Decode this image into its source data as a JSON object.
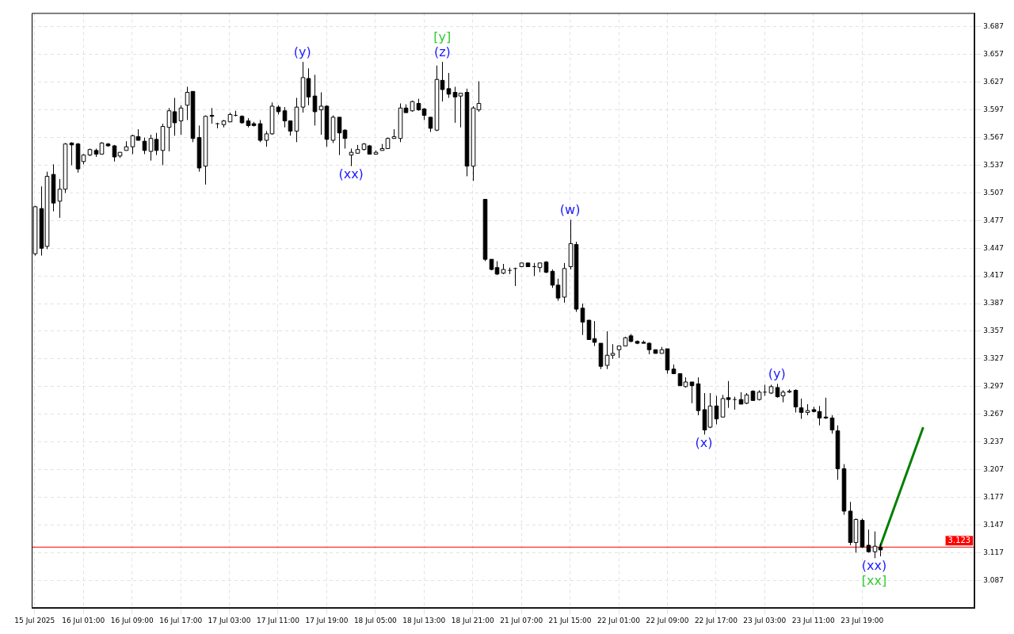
{
  "chart_data": {
    "type": "candlestick",
    "categories": [
      "15 Jul 2025",
      null,
      null,
      null,
      null,
      null,
      null,
      null,
      "16 Jul 01:00",
      null,
      null,
      null,
      null,
      null,
      null,
      null,
      "16 Jul 09:00",
      null,
      null,
      null,
      null,
      null,
      null,
      null,
      "16 Jul 17:00",
      null,
      null,
      null,
      null,
      null,
      null,
      null,
      "17 Jul 03:00",
      null,
      null,
      null,
      null,
      null,
      null,
      null,
      "17 Jul 11:00",
      null,
      null,
      null,
      null,
      null,
      null,
      null,
      "17 Jul 19:00",
      null,
      null,
      null,
      null,
      null,
      null,
      null,
      "18 Jul 05:00",
      null,
      null,
      null,
      null,
      null,
      null,
      null,
      "18 Jul 13:00",
      null,
      null,
      null,
      null,
      null,
      null,
      null,
      "18 Jul 21:00",
      null,
      null,
      null,
      null,
      null,
      null,
      null,
      "21 Jul 07:00",
      null,
      null,
      null,
      null,
      null,
      null,
      null,
      "21 Jul 15:00",
      null,
      null,
      null,
      null,
      null,
      null,
      null,
      "22 Jul 01:00",
      null,
      null,
      null,
      null,
      null,
      null,
      null,
      "22 Jul 09:00",
      null,
      null,
      null,
      null,
      null,
      null,
      null,
      "22 Jul 17:00",
      null,
      null,
      null,
      null,
      null,
      null,
      null,
      "23 Jul 03:00",
      null,
      null,
      null,
      null,
      null,
      null,
      null,
      "23 Jul 11:00",
      null,
      null,
      null,
      null,
      null,
      null,
      null,
      "23 Jul 19:00",
      null,
      null,
      null,
      null,
      null,
      null,
      null,
      null,
      null,
      null,
      null,
      null,
      null,
      null,
      null,
      null,
      null,
      null
    ],
    "ohlc": [
      [
        3.441,
        3.493,
        3.439,
        3.492
      ],
      [
        3.49,
        3.514,
        3.439,
        3.447
      ],
      [
        3.449,
        3.53,
        3.446,
        3.525
      ],
      [
        3.527,
        3.538,
        3.487,
        3.496
      ],
      [
        3.498,
        3.522,
        3.48,
        3.511
      ],
      [
        3.511,
        3.561,
        3.507,
        3.56
      ],
      [
        3.561,
        3.562,
        3.537,
        3.559
      ],
      [
        3.56,
        3.561,
        3.529,
        3.533
      ],
      [
        3.541,
        3.549,
        3.538,
        3.548
      ],
      [
        3.548,
        3.555,
        3.547,
        3.554
      ],
      [
        3.553,
        3.555,
        3.546,
        3.549
      ],
      [
        3.549,
        3.562,
        3.549,
        3.561
      ],
      [
        3.56,
        3.561,
        3.557,
        3.558
      ],
      [
        3.558,
        3.559,
        3.541,
        3.546
      ],
      [
        3.547,
        3.551,
        3.545,
        3.551
      ],
      [
        3.553,
        3.563,
        3.553,
        3.557
      ],
      [
        3.557,
        3.57,
        3.549,
        3.569
      ],
      [
        3.568,
        3.576,
        3.564,
        3.564
      ],
      [
        3.563,
        3.567,
        3.549,
        3.553
      ],
      [
        3.552,
        3.57,
        3.542,
        3.566
      ],
      [
        3.565,
        3.572,
        3.548,
        3.553
      ],
      [
        3.553,
        3.582,
        3.537,
        3.579
      ],
      [
        3.578,
        3.599,
        3.552,
        3.596
      ],
      [
        3.595,
        3.61,
        3.569,
        3.583
      ],
      [
        3.585,
        3.602,
        3.57,
        3.599
      ],
      [
        3.602,
        3.622,
        3.586,
        3.616
      ],
      [
        3.617,
        3.617,
        3.562,
        3.566
      ],
      [
        3.567,
        3.58,
        3.53,
        3.534
      ],
      [
        3.536,
        3.591,
        3.516,
        3.59
      ],
      [
        3.591,
        3.599,
        3.582,
        3.59
      ],
      [
        3.582,
        3.583,
        3.577,
        3.582
      ],
      [
        3.581,
        3.586,
        3.578,
        3.585
      ],
      [
        3.584,
        3.594,
        3.584,
        3.592
      ],
      [
        3.591,
        3.596,
        3.59,
        3.591
      ],
      [
        3.59,
        3.591,
        3.582,
        3.583
      ],
      [
        3.585,
        3.588,
        3.578,
        3.58
      ],
      [
        3.582,
        3.584,
        3.579,
        3.58
      ],
      [
        3.582,
        3.586,
        3.562,
        3.564
      ],
      [
        3.564,
        3.574,
        3.557,
        3.571
      ],
      [
        3.571,
        3.605,
        3.57,
        3.601
      ],
      [
        3.6,
        3.602,
        3.592,
        3.595
      ],
      [
        3.596,
        3.6,
        3.578,
        3.585
      ],
      [
        3.585,
        3.585,
        3.569,
        3.574
      ],
      [
        3.574,
        3.61,
        3.562,
        3.6
      ],
      [
        3.6,
        3.649,
        3.594,
        3.632
      ],
      [
        3.631,
        3.642,
        3.602,
        3.611
      ],
      [
        3.612,
        3.635,
        3.58,
        3.595
      ],
      [
        3.597,
        3.616,
        3.57,
        3.601
      ],
      [
        3.601,
        3.602,
        3.557,
        3.565
      ],
      [
        3.564,
        3.591,
        3.561,
        3.589
      ],
      [
        3.589,
        3.589,
        3.548,
        3.572
      ],
      [
        3.575,
        3.576,
        3.555,
        3.566
      ],
      [
        3.548,
        3.555,
        3.536,
        3.551
      ],
      [
        3.55,
        3.559,
        3.55,
        3.554
      ],
      [
        3.554,
        3.561,
        3.553,
        3.56
      ],
      [
        3.558,
        3.559,
        3.549,
        3.549
      ],
      [
        3.549,
        3.553,
        3.549,
        3.551
      ],
      [
        3.553,
        3.56,
        3.553,
        3.555
      ],
      [
        3.555,
        3.567,
        3.555,
        3.566
      ],
      [
        3.566,
        3.576,
        3.566,
        3.568
      ],
      [
        3.566,
        3.604,
        3.562,
        3.599
      ],
      [
        3.599,
        3.603,
        3.594,
        3.594
      ],
      [
        3.596,
        3.607,
        3.595,
        3.606
      ],
      [
        3.604,
        3.609,
        3.596,
        3.597
      ],
      [
        3.598,
        3.599,
        3.586,
        3.591
      ],
      [
        3.589,
        3.589,
        3.573,
        3.577
      ],
      [
        3.575,
        3.645,
        3.574,
        3.63
      ],
      [
        3.629,
        3.649,
        3.606,
        3.619
      ],
      [
        3.62,
        3.637,
        3.61,
        3.614
      ],
      [
        3.616,
        3.622,
        3.583,
        3.611
      ],
      [
        3.612,
        3.615,
        3.578,
        3.615
      ],
      [
        3.616,
        3.62,
        3.525,
        3.536
      ],
      [
        3.536,
        3.601,
        3.52,
        3.599
      ],
      [
        3.597,
        3.628,
        3.595,
        3.604
      ],
      [
        3.5,
        3.5,
        3.433,
        3.435
      ],
      [
        3.435,
        3.435,
        3.423,
        3.424
      ],
      [
        3.426,
        3.433,
        3.418,
        3.419
      ],
      [
        3.42,
        3.43,
        3.419,
        3.424
      ],
      [
        3.423,
        3.426,
        3.419,
        3.423
      ],
      [
        3.425,
        3.426,
        3.406,
        3.425
      ],
      [
        3.427,
        3.431,
        3.427,
        3.431
      ],
      [
        3.431,
        3.431,
        3.427,
        3.427
      ],
      [
        3.427,
        3.431,
        3.417,
        3.427
      ],
      [
        3.426,
        3.431,
        3.421,
        3.431
      ],
      [
        3.432,
        3.433,
        3.42,
        3.421
      ],
      [
        3.422,
        3.424,
        3.404,
        3.407
      ],
      [
        3.407,
        3.414,
        3.39,
        3.393
      ],
      [
        3.394,
        3.431,
        3.388,
        3.425
      ],
      [
        3.427,
        3.478,
        3.424,
        3.452
      ],
      [
        3.451,
        3.454,
        3.378,
        3.381
      ],
      [
        3.382,
        3.387,
        3.353,
        3.367
      ],
      [
        3.369,
        3.369,
        3.348,
        3.348
      ],
      [
        3.349,
        3.368,
        3.341,
        3.345
      ],
      [
        3.344,
        3.344,
        3.316,
        3.319
      ],
      [
        3.32,
        3.357,
        3.316,
        3.331
      ],
      [
        3.331,
        3.343,
        3.327,
        3.333
      ],
      [
        3.337,
        3.341,
        3.328,
        3.341
      ],
      [
        3.341,
        3.351,
        3.341,
        3.35
      ],
      [
        3.352,
        3.354,
        3.345,
        3.346
      ],
      [
        3.346,
        3.347,
        3.343,
        3.344
      ],
      [
        3.345,
        3.347,
        3.344,
        3.344
      ],
      [
        3.344,
        3.345,
        3.332,
        3.337
      ],
      [
        3.337,
        3.337,
        3.333,
        3.333
      ],
      [
        3.333,
        3.34,
        3.333,
        3.337
      ],
      [
        3.338,
        3.338,
        3.311,
        3.315
      ],
      [
        3.316,
        3.321,
        3.311,
        3.311
      ],
      [
        3.311,
        3.311,
        3.298,
        3.298
      ],
      [
        3.297,
        3.307,
        3.296,
        3.302
      ],
      [
        3.302,
        3.302,
        3.279,
        3.298
      ],
      [
        3.3,
        3.307,
        3.266,
        3.271
      ],
      [
        3.272,
        3.29,
        3.245,
        3.25
      ],
      [
        3.253,
        3.29,
        3.252,
        3.276
      ],
      [
        3.276,
        3.287,
        3.256,
        3.262
      ],
      [
        3.264,
        3.288,
        3.264,
        3.284
      ],
      [
        3.285,
        3.303,
        3.274,
        3.283
      ],
      [
        3.283,
        3.286,
        3.272,
        3.283
      ],
      [
        3.283,
        3.291,
        3.278,
        3.278
      ],
      [
        3.279,
        3.29,
        3.278,
        3.288
      ],
      [
        3.292,
        3.293,
        3.282,
        3.282
      ],
      [
        3.283,
        3.293,
        3.282,
        3.291
      ],
      [
        3.291,
        3.299,
        3.287,
        3.291
      ],
      [
        3.29,
        3.299,
        3.289,
        3.297
      ],
      [
        3.296,
        3.3,
        3.285,
        3.286
      ],
      [
        3.287,
        3.293,
        3.28,
        3.291
      ],
      [
        3.291,
        3.294,
        3.29,
        3.292
      ],
      [
        3.293,
        3.294,
        3.269,
        3.275
      ],
      [
        3.274,
        3.284,
        3.262,
        3.269
      ],
      [
        3.269,
        3.278,
        3.266,
        3.271
      ],
      [
        3.272,
        3.275,
        3.269,
        3.27
      ],
      [
        3.27,
        3.276,
        3.255,
        3.263
      ],
      [
        3.264,
        3.285,
        3.262,
        3.263
      ],
      [
        3.263,
        3.266,
        3.246,
        3.25
      ],
      [
        3.249,
        3.255,
        3.196,
        3.208
      ],
      [
        3.208,
        3.213,
        3.158,
        3.162
      ],
      [
        3.162,
        3.172,
        3.125,
        3.128
      ],
      [
        3.128,
        3.154,
        3.117,
        3.153
      ],
      [
        3.152,
        3.154,
        3.122,
        3.123
      ],
      [
        3.125,
        3.142,
        3.117,
        3.118
      ],
      [
        3.118,
        3.14,
        3.111,
        3.124
      ],
      [
        3.123,
        3.127,
        3.113,
        3.12
      ],
      null,
      null,
      null,
      null,
      null,
      null,
      null,
      null,
      null,
      null,
      null,
      null,
      null,
      null,
      null
    ],
    "series": [
      {
        "type": "line",
        "color": "#008000",
        "values": [
          null,
          null,
          null,
          null,
          null,
          null,
          null,
          null,
          null,
          null,
          null,
          null,
          null,
          null,
          null,
          null,
          null,
          null,
          null,
          null,
          null,
          null,
          null,
          null,
          null,
          null,
          null,
          null,
          null,
          null,
          null,
          null,
          null,
          null,
          null,
          null,
          null,
          null,
          null,
          null,
          null,
          null,
          null,
          null,
          null,
          null,
          null,
          null,
          null,
          null,
          null,
          null,
          null,
          null,
          null,
          null,
          null,
          null,
          null,
          null,
          null,
          null,
          null,
          null,
          null,
          null,
          null,
          null,
          null,
          null,
          null,
          null,
          null,
          null,
          null,
          null,
          null,
          null,
          null,
          null,
          null,
          null,
          null,
          null,
          null,
          null,
          null,
          null,
          null,
          null,
          null,
          null,
          null,
          null,
          null,
          null,
          null,
          null,
          null,
          null,
          null,
          null,
          null,
          null,
          null,
          null,
          null,
          null,
          null,
          null,
          null,
          null,
          null,
          null,
          null,
          null,
          null,
          null,
          null,
          null,
          null,
          null,
          null,
          null,
          null,
          null,
          null,
          null,
          null,
          null,
          null,
          null,
          null,
          null,
          null,
          null,
          null,
          null,
          null,
          3.124,
          null,
          null,
          null,
          null,
          null,
          null,
          3.252,
          null,
          null,
          null,
          null,
          null,
          null,
          null,
          null
        ]
      }
    ],
    "ylim": [
      3.057,
      3.702
    ],
    "yticks": [
      3.087,
      3.117,
      3.147,
      3.177,
      3.207,
      3.237,
      3.267,
      3.297,
      3.327,
      3.357,
      3.387,
      3.417,
      3.447,
      3.477,
      3.507,
      3.537,
      3.567,
      3.597,
      3.627,
      3.657,
      3.687
    ],
    "grid": true,
    "ref_lines": [
      {
        "axis": "y",
        "value": 3.123,
        "label": "3.123",
        "color": "#ff0000"
      }
    ],
    "annotations": [
      {
        "text": "(y)",
        "y": 3.649
      },
      {
        "text": "(xx)",
        "y": 3.536
      },
      {
        "text": "(z)",
        "y": 3.649
      },
      {
        "text": "[y]",
        "y": 3.649
      },
      {
        "text": "(w)",
        "y": 3.478
      },
      {
        "text": "(x)",
        "y": 3.245
      },
      {
        "text": "(y)",
        "y": 3.3
      },
      {
        "text": "(xx)",
        "y": 3.111
      },
      {
        "text": "[xx]",
        "y": 3.111
      }
    ]
  }
}
